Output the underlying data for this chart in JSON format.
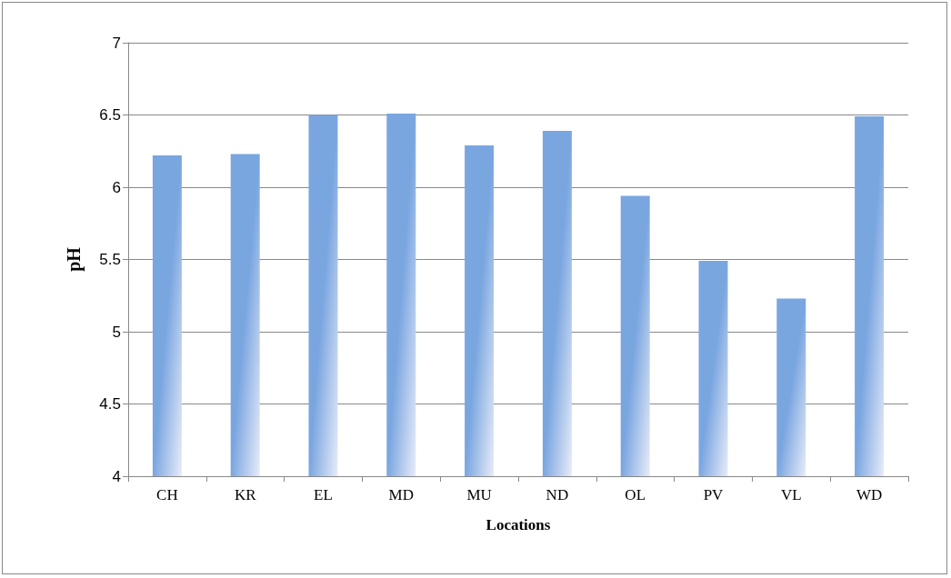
{
  "chart_data": {
    "type": "bar",
    "xlabel": "Locations",
    "ylabel": "pH",
    "categories": [
      "CH",
      "KR",
      "EL",
      "MD",
      "MU",
      "ND",
      "OL",
      "PV",
      "VL",
      "WD"
    ],
    "values": [
      6.22,
      6.23,
      6.5,
      6.51,
      6.29,
      6.39,
      5.94,
      5.49,
      5.23,
      6.49
    ],
    "color": "#7aa6e0",
    "ylim": [
      4,
      7
    ],
    "yticks": [
      4,
      4.5,
      5,
      5.5,
      6,
      6.5,
      7
    ],
    "grid": "y"
  }
}
